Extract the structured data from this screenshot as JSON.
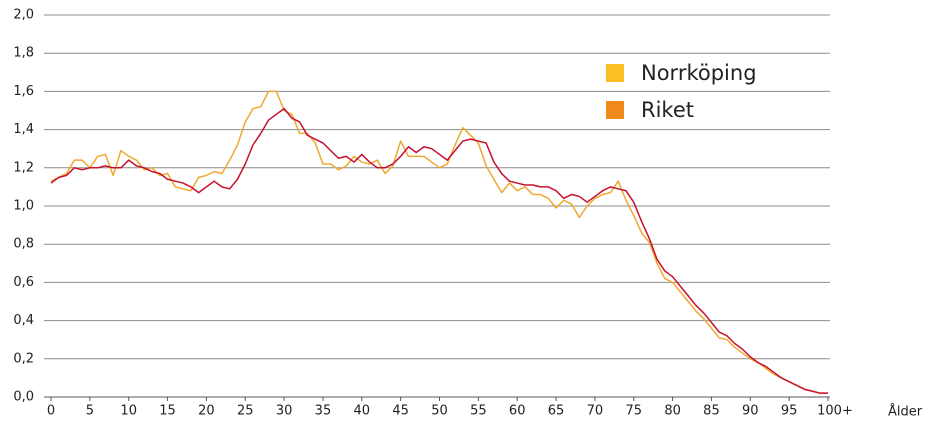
{
  "chart_data": {
    "type": "line",
    "x_label": "Ålder",
    "x": [
      0,
      1,
      2,
      3,
      4,
      5,
      6,
      7,
      8,
      9,
      10,
      11,
      12,
      13,
      14,
      15,
      16,
      17,
      18,
      19,
      20,
      21,
      22,
      23,
      24,
      25,
      26,
      27,
      28,
      29,
      30,
      31,
      32,
      33,
      34,
      35,
      36,
      37,
      38,
      39,
      40,
      41,
      42,
      43,
      44,
      45,
      46,
      47,
      48,
      49,
      50,
      51,
      52,
      53,
      54,
      55,
      56,
      57,
      58,
      59,
      60,
      61,
      62,
      63,
      64,
      65,
      66,
      67,
      68,
      69,
      70,
      71,
      72,
      73,
      74,
      75,
      76,
      77,
      78,
      79,
      80,
      81,
      82,
      83,
      84,
      85,
      86,
      87,
      88,
      89,
      90,
      91,
      92,
      93,
      94,
      95,
      96,
      97,
      98,
      99,
      100
    ],
    "series": [
      {
        "name": "Norrköping",
        "color": "#f0a830",
        "legend_color": "#fbbf24",
        "values": [
          1.13,
          1.15,
          1.17,
          1.24,
          1.24,
          1.2,
          1.26,
          1.27,
          1.16,
          1.29,
          1.26,
          1.24,
          1.19,
          1.2,
          1.16,
          1.17,
          1.1,
          1.09,
          1.08,
          1.15,
          1.16,
          1.18,
          1.17,
          1.24,
          1.32,
          1.44,
          1.51,
          1.52,
          1.6,
          1.6,
          1.5,
          1.48,
          1.38,
          1.38,
          1.33,
          1.22,
          1.22,
          1.19,
          1.21,
          1.26,
          1.23,
          1.22,
          1.24,
          1.17,
          1.21,
          1.34,
          1.26,
          1.26,
          1.26,
          1.23,
          1.2,
          1.22,
          1.32,
          1.41,
          1.37,
          1.33,
          1.21,
          1.14,
          1.07,
          1.12,
          1.08,
          1.1,
          1.06,
          1.06,
          1.04,
          0.99,
          1.03,
          1.01,
          0.94,
          1.0,
          1.04,
          1.06,
          1.07,
          1.13,
          1.03,
          0.95,
          0.86,
          0.81,
          0.7,
          0.62,
          0.6,
          0.55,
          0.5,
          0.45,
          0.41,
          0.36,
          0.31,
          0.3,
          0.26,
          0.23,
          0.2,
          0.18,
          0.15,
          0.12,
          0.1,
          0.08,
          0.06,
          0.04,
          0.03,
          0.02,
          0.02
        ]
      },
      {
        "name": "Riket",
        "color": "#c8102e",
        "legend_color": "#f08a1c",
        "values": [
          1.12,
          1.15,
          1.16,
          1.2,
          1.19,
          1.2,
          1.2,
          1.21,
          1.2,
          1.2,
          1.24,
          1.21,
          1.2,
          1.18,
          1.17,
          1.14,
          1.13,
          1.12,
          1.1,
          1.07,
          1.1,
          1.13,
          1.1,
          1.09,
          1.14,
          1.22,
          1.32,
          1.38,
          1.45,
          1.48,
          1.51,
          1.46,
          1.44,
          1.37,
          1.35,
          1.33,
          1.29,
          1.25,
          1.26,
          1.23,
          1.27,
          1.23,
          1.2,
          1.2,
          1.22,
          1.26,
          1.31,
          1.28,
          1.31,
          1.3,
          1.27,
          1.24,
          1.29,
          1.34,
          1.35,
          1.34,
          1.33,
          1.23,
          1.17,
          1.13,
          1.12,
          1.11,
          1.11,
          1.1,
          1.1,
          1.08,
          1.04,
          1.06,
          1.05,
          1.02,
          1.05,
          1.08,
          1.1,
          1.09,
          1.08,
          1.02,
          0.92,
          0.83,
          0.72,
          0.66,
          0.63,
          0.58,
          0.53,
          0.48,
          0.44,
          0.39,
          0.34,
          0.32,
          0.28,
          0.25,
          0.21,
          0.18,
          0.16,
          0.13,
          0.1,
          0.08,
          0.06,
          0.04,
          0.03,
          0.02,
          0.02
        ]
      }
    ],
    "xlim": [
      0,
      100
    ],
    "xticks": [
      0,
      5,
      10,
      15,
      20,
      25,
      30,
      35,
      40,
      45,
      50,
      55,
      60,
      65,
      70,
      75,
      80,
      85,
      90,
      95,
      {
        "value": 100,
        "label": "100+"
      }
    ],
    "ylim": [
      0,
      2
    ],
    "yticks": [
      {
        "value": 0,
        "label": "0,0"
      },
      {
        "value": 0.2,
        "label": "0,2"
      },
      {
        "value": 0.4,
        "label": "0,4"
      },
      {
        "value": 0.6,
        "label": "0,6"
      },
      {
        "value": 0.8,
        "label": "0,8"
      },
      {
        "value": 1.0,
        "label": "1,0"
      },
      {
        "value": 1.2,
        "label": "1,2"
      },
      {
        "value": 1.4,
        "label": "1,4"
      },
      {
        "value": 1.6,
        "label": "1,6"
      },
      {
        "value": 1.8,
        "label": "1,8"
      },
      {
        "value": 2.0,
        "label": "2,0"
      }
    ],
    "grid": true
  }
}
